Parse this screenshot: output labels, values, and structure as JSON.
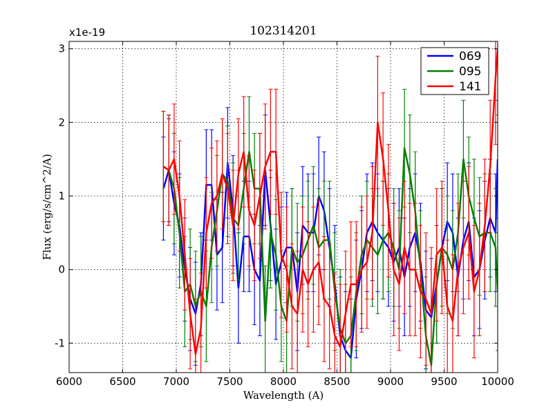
{
  "chart_data": {
    "type": "line",
    "title": "102314201",
    "xlabel": "Wavelength (A)",
    "ylabel": "Flux (erg/s/cm^2/A)",
    "y_multiplier": "x1e-19",
    "xlim": [
      6000,
      10000
    ],
    "ylim": [
      -1.4,
      3.1
    ],
    "xticks": [
      6000,
      6500,
      7000,
      7500,
      8000,
      8500,
      9000,
      9500,
      10000
    ],
    "yticks": [
      -1,
      0,
      1,
      2,
      3
    ],
    "ytick_labels": [
      "-1",
      "0",
      "1",
      "2",
      "3"
    ],
    "grid": true,
    "legend_position": "top-right",
    "series": [
      {
        "name": "069",
        "color": "#0000ff",
        "x": [
          6880,
          6930,
          6980,
          7030,
          7080,
          7130,
          7180,
          7230,
          7280,
          7330,
          7380,
          7430,
          7480,
          7530,
          7580,
          7630,
          7680,
          7730,
          7780,
          7830,
          7880,
          7930,
          7980,
          8030,
          8080,
          8130,
          8180,
          8230,
          8280,
          8330,
          8380,
          8430,
          8480,
          8530,
          8580,
          8630,
          8680,
          8730,
          8780,
          8830,
          8880,
          8930,
          8980,
          9030,
          9080,
          9130,
          9180,
          9230,
          9280,
          9330,
          9380,
          9430,
          9480,
          9530,
          9580,
          9630,
          9680,
          9730,
          9780,
          9830,
          9880,
          9930,
          9980,
          10000
        ],
        "y": [
          1.1,
          1.35,
          0.9,
          0.6,
          0.0,
          -0.4,
          -0.6,
          -0.2,
          1.15,
          1.15,
          0.2,
          0.3,
          1.45,
          0.8,
          -0.25,
          0.45,
          0.45,
          0.0,
          -0.15,
          1.35,
          0.6,
          -0.2,
          0.1,
          0.3,
          0.3,
          -0.3,
          0.6,
          0.5,
          0.5,
          1.0,
          0.8,
          0.3,
          -0.2,
          -0.9,
          -1.1,
          -1.2,
          -0.4,
          0.0,
          0.5,
          0.65,
          0.5,
          0.4,
          0.3,
          0.1,
          0.3,
          -0.1,
          0.3,
          0.5,
          0.1,
          -0.55,
          -0.65,
          -0.2,
          0.3,
          0.65,
          0.5,
          -0.1,
          0.4,
          0.65,
          -0.1,
          0.0,
          0.4,
          0.7,
          0.5,
          1.5
        ],
        "err": [
          0.7,
          0.7,
          0.7,
          0.7,
          0.7,
          0.7,
          0.7,
          0.7,
          0.75,
          0.75,
          0.75,
          0.75,
          0.75,
          0.75,
          0.75,
          0.75,
          0.75,
          0.75,
          0.75,
          0.75,
          0.75,
          0.75,
          0.75,
          0.75,
          0.8,
          0.8,
          0.8,
          0.8,
          0.8,
          0.8,
          0.8,
          0.8,
          0.8,
          0.8,
          0.8,
          0.8,
          0.8,
          0.8,
          0.8,
          0.8,
          0.8,
          0.8,
          0.8,
          0.8,
          0.8,
          0.8,
          0.8,
          0.8,
          0.8,
          0.8,
          0.8,
          0.8,
          0.8,
          0.8,
          0.8,
          0.8,
          0.8,
          0.8,
          0.8,
          0.8,
          0.8,
          0.8,
          0.8,
          0.8
        ]
      },
      {
        "name": "095",
        "color": "#008000",
        "x": [
          6880,
          6930,
          6980,
          7030,
          7080,
          7130,
          7180,
          7230,
          7280,
          7330,
          7380,
          7430,
          7480,
          7530,
          7580,
          7630,
          7680,
          7730,
          7780,
          7830,
          7880,
          7930,
          7980,
          8030,
          8080,
          8130,
          8180,
          8230,
          8280,
          8330,
          8380,
          8430,
          8480,
          8530,
          8580,
          8630,
          8680,
          8730,
          8780,
          8830,
          8880,
          8930,
          8980,
          9030,
          9080,
          9130,
          9180,
          9230,
          9280,
          9330,
          9380,
          9430,
          9480,
          9530,
          9580,
          9630,
          9680,
          9730,
          9780,
          9830,
          9880,
          9930,
          9980,
          10000
        ],
        "y": [
          1.4,
          1.35,
          1.1,
          0.5,
          -0.3,
          -0.2,
          -0.5,
          -0.3,
          -0.5,
          0.3,
          0.8,
          1.3,
          1.2,
          0.7,
          0.6,
          1.1,
          1.6,
          1.1,
          1.1,
          -0.7,
          0.5,
          0.2,
          -0.5,
          -0.7,
          0.3,
          0.1,
          0.2,
          0.4,
          0.6,
          0.3,
          0.4,
          0.4,
          -0.3,
          -0.8,
          -1.0,
          -0.9,
          -0.3,
          0.2,
          0.4,
          0.3,
          0.2,
          0.4,
          0.5,
          0.3,
          0.0,
          1.65,
          1.3,
          0.8,
          0.0,
          -0.9,
          -1.3,
          -0.2,
          0.3,
          0.2,
          0.0,
          0.5,
          1.5,
          1.0,
          0.7,
          0.45,
          0.5,
          0.5,
          0.3,
          -0.3
        ],
        "err": [
          0.75,
          0.75,
          0.75,
          0.75,
          0.75,
          0.75,
          0.75,
          0.75,
          0.75,
          0.75,
          0.75,
          0.75,
          0.75,
          0.75,
          0.75,
          0.75,
          0.75,
          0.75,
          0.75,
          0.75,
          0.75,
          0.75,
          0.75,
          0.75,
          0.8,
          0.8,
          0.8,
          0.8,
          0.8,
          0.8,
          0.8,
          0.8,
          0.8,
          0.8,
          0.8,
          0.8,
          0.8,
          0.8,
          0.8,
          0.8,
          0.8,
          0.8,
          0.8,
          0.8,
          0.8,
          0.8,
          0.8,
          0.8,
          0.8,
          0.8,
          0.8,
          0.8,
          0.8,
          0.8,
          0.8,
          0.8,
          0.8,
          0.8,
          0.8,
          0.8,
          0.8,
          0.8,
          0.8,
          0.8
        ]
      },
      {
        "name": "141",
        "color": "#ff0000",
        "x": [
          6880,
          6930,
          6980,
          7030,
          7080,
          7130,
          7180,
          7230,
          7280,
          7330,
          7380,
          7430,
          7480,
          7530,
          7580,
          7630,
          7680,
          7730,
          7780,
          7830,
          7880,
          7930,
          7980,
          8030,
          8080,
          8130,
          8180,
          8230,
          8280,
          8330,
          8380,
          8430,
          8480,
          8530,
          8580,
          8630,
          8680,
          8730,
          8780,
          8830,
          8880,
          8930,
          8980,
          9030,
          9080,
          9130,
          9180,
          9230,
          9280,
          9330,
          9380,
          9430,
          9480,
          9530,
          9580,
          9630,
          9680,
          9730,
          9780,
          9830,
          9880,
          9930,
          9980,
          10000
        ],
        "y": [
          1.4,
          1.35,
          1.5,
          1.0,
          0.2,
          -0.6,
          -1.15,
          -0.8,
          0.5,
          0.9,
          1.0,
          1.3,
          1.1,
          0.6,
          1.3,
          1.6,
          0.8,
          0.6,
          1.0,
          1.4,
          1.6,
          1.6,
          0.2,
          0.0,
          -0.5,
          -0.6,
          0.0,
          -0.2,
          0.0,
          0.1,
          -0.4,
          -0.5,
          -0.9,
          -1.05,
          -0.6,
          -0.2,
          -0.2,
          0.0,
          0.1,
          0.5,
          2.0,
          1.5,
          0.8,
          0.0,
          -0.2,
          0.3,
          0.0,
          0.0,
          -0.3,
          -0.4,
          -0.6,
          0.2,
          0.3,
          -0.5,
          -0.7,
          0.0,
          0.3,
          0.5,
          -0.3,
          0.0,
          0.6,
          1.4,
          2.6,
          3.0
        ],
        "err": [
          0.75,
          0.75,
          0.75,
          0.75,
          0.75,
          0.75,
          0.75,
          0.75,
          0.75,
          0.75,
          0.75,
          0.75,
          0.75,
          0.75,
          0.75,
          0.75,
          0.75,
          0.75,
          0.85,
          0.85,
          0.85,
          0.85,
          0.85,
          0.85,
          0.85,
          0.85,
          0.85,
          0.85,
          0.85,
          0.85,
          0.85,
          0.85,
          0.85,
          0.85,
          0.85,
          0.85,
          0.85,
          0.85,
          0.9,
          0.9,
          0.9,
          0.9,
          0.9,
          0.9,
          0.9,
          0.9,
          0.9,
          0.9,
          0.9,
          0.9,
          0.9,
          0.9,
          0.9,
          0.9,
          0.9,
          0.9,
          0.9,
          0.9,
          0.9,
          0.9,
          0.9,
          0.9,
          0.9,
          0.9
        ]
      }
    ]
  }
}
